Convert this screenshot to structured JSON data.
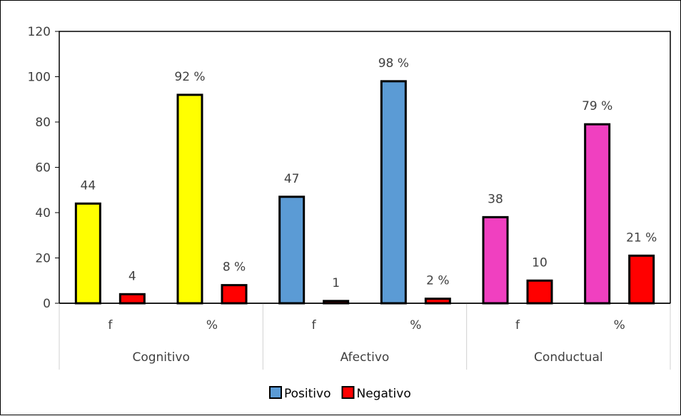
{
  "chart_data": {
    "type": "bar",
    "ylim": [
      0,
      120
    ],
    "yticks": [
      0,
      20,
      40,
      60,
      80,
      100,
      120
    ],
    "groups": [
      {
        "label": "Cognitivo",
        "color": "#FFFF00",
        "subcategories": [
          {
            "label": "f",
            "positivo": 44,
            "negativo": 4,
            "positivo_label": "44",
            "negativo_label": "4"
          },
          {
            "label": "%",
            "positivo": 92,
            "negativo": 8,
            "positivo_label": "92 %",
            "negativo_label": "8 %"
          }
        ]
      },
      {
        "label": "Afectivo",
        "color": "#5B9BD5",
        "subcategories": [
          {
            "label": "f",
            "positivo": 47,
            "negativo": 1,
            "positivo_label": "47",
            "negativo_label": "1"
          },
          {
            "label": "%",
            "positivo": 98,
            "negativo": 2,
            "positivo_label": "98 %",
            "negativo_label": "2 %"
          }
        ]
      },
      {
        "label": "Conductual",
        "color": "#F040C0",
        "subcategories": [
          {
            "label": "f",
            "positivo": 38,
            "negativo": 10,
            "positivo_label": "38",
            "negativo_label": "10"
          },
          {
            "label": "%",
            "positivo": 79,
            "negativo": 21,
            "positivo_label": "79 %",
            "negativo_label": "21 %"
          }
        ]
      }
    ],
    "negative_color": "#FF0000",
    "legend": {
      "position": "bottom",
      "items": [
        {
          "label": "Positivo",
          "color": "#5B9BD5"
        },
        {
          "label": "Negativo",
          "color": "#FF0000"
        }
      ]
    }
  }
}
